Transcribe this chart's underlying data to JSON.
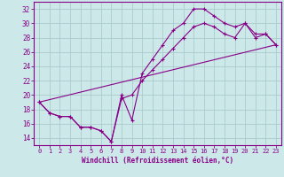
{
  "xlabel": "Windchill (Refroidissement éolien,°C)",
  "ylabel": "",
  "bg_color": "#cce8e8",
  "line_color": "#880088",
  "grid_color": "#aacccc",
  "x_ticks": [
    0,
    1,
    2,
    3,
    4,
    5,
    6,
    7,
    8,
    9,
    10,
    11,
    12,
    13,
    14,
    15,
    16,
    17,
    18,
    19,
    20,
    21,
    22,
    23
  ],
  "y_ticks": [
    14,
    16,
    18,
    20,
    22,
    24,
    26,
    28,
    30,
    32
  ],
  "xlim": [
    -0.5,
    23.5
  ],
  "ylim": [
    13.0,
    33.0
  ],
  "line1_x": [
    0,
    1,
    2,
    3,
    4,
    5,
    6,
    7,
    8,
    9,
    10,
    11,
    12,
    13,
    14,
    15,
    16,
    17,
    18,
    19,
    20,
    21,
    22,
    23
  ],
  "line1_y": [
    19.0,
    17.5,
    17.0,
    17.0,
    15.5,
    15.5,
    15.0,
    13.5,
    20.0,
    16.5,
    23.0,
    25.0,
    27.0,
    29.0,
    30.0,
    32.0,
    32.0,
    31.0,
    30.0,
    29.5,
    30.0,
    28.5,
    28.5,
    27.0
  ],
  "line2_x": [
    0,
    1,
    2,
    3,
    4,
    5,
    6,
    7,
    8,
    9,
    10,
    11,
    12,
    13,
    14,
    15,
    16,
    17,
    18,
    19,
    20,
    21,
    22,
    23
  ],
  "line2_y": [
    19.0,
    17.5,
    17.0,
    17.0,
    15.5,
    15.5,
    15.0,
    13.5,
    19.5,
    20.0,
    22.0,
    23.5,
    25.0,
    26.5,
    28.0,
    29.5,
    30.0,
    29.5,
    28.5,
    28.0,
    30.0,
    28.0,
    28.5,
    27.0
  ],
  "line3_x": [
    0,
    23
  ],
  "line3_y": [
    19.0,
    27.0
  ]
}
